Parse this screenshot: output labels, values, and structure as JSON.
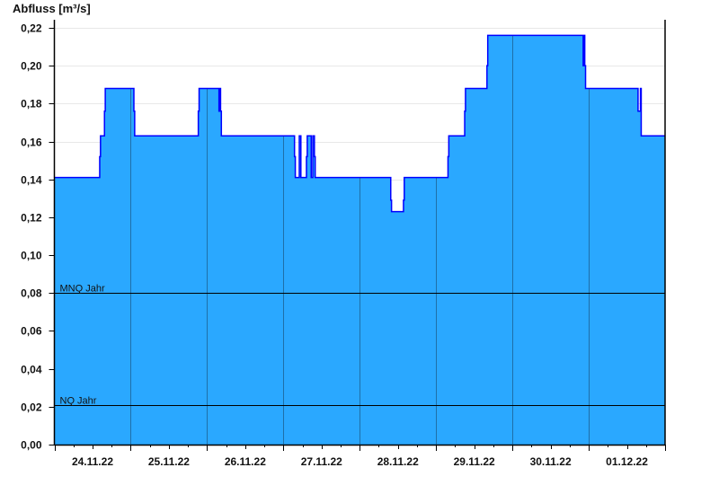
{
  "chart_data": {
    "type": "area",
    "ylabel": "Abfluss [m³/s]",
    "ylim": [
      0,
      0.22
    ],
    "yticks": [
      "0,00",
      "0,02",
      "0,04",
      "0,06",
      "0,08",
      "0,10",
      "0,12",
      "0,14",
      "0,16",
      "0,18",
      "0,20",
      "0,22"
    ],
    "xlim": [
      "2022-11-24T00:00",
      "2022-12-02T00:00"
    ],
    "xticks": [
      "24.11.22",
      "25.11.22",
      "26.11.22",
      "27.11.22",
      "28.11.22",
      "29.11.22",
      "30.11.22",
      "01.12.22"
    ],
    "grid": true,
    "colors": {
      "fill": "#2aa8ff",
      "line": "#0000ff",
      "reference": "#000000",
      "day_divider": "#1f6fa8",
      "grid": "#e8e8e8"
    },
    "reference_lines": [
      {
        "label": "MNQ Jahr",
        "value": 0.08
      },
      {
        "label": "NQ Jahr",
        "value": 0.021
      }
    ],
    "series_step": [
      [
        "2022-11-24T00:00",
        0.141
      ],
      [
        "2022-11-24T14:15",
        0.152
      ],
      [
        "2022-11-24T14:30",
        0.163
      ],
      [
        "2022-11-24T15:45",
        0.176
      ],
      [
        "2022-11-24T16:00",
        0.188
      ],
      [
        "2022-11-25T01:00",
        0.176
      ],
      [
        "2022-11-25T01:15",
        0.163
      ],
      [
        "2022-11-25T21:15",
        0.176
      ],
      [
        "2022-11-25T21:30",
        0.188
      ],
      [
        "2022-11-26T03:45",
        0.176
      ],
      [
        "2022-11-26T04:00",
        0.188
      ],
      [
        "2022-11-26T04:15",
        0.176
      ],
      [
        "2022-11-26T04:30",
        0.163
      ],
      [
        "2022-11-27T03:30",
        0.152
      ],
      [
        "2022-11-27T03:45",
        0.141
      ],
      [
        "2022-11-27T05:00",
        0.163
      ],
      [
        "2022-11-27T05:30",
        0.141
      ],
      [
        "2022-11-27T07:15",
        0.152
      ],
      [
        "2022-11-27T07:30",
        0.163
      ],
      [
        "2022-11-27T08:45",
        0.141
      ],
      [
        "2022-11-27T09:15",
        0.163
      ],
      [
        "2022-11-27T09:45",
        0.152
      ],
      [
        "2022-11-27T10:00",
        0.141
      ],
      [
        "2022-11-28T09:45",
        0.129
      ],
      [
        "2022-11-28T10:00",
        0.123
      ],
      [
        "2022-11-28T13:45",
        0.129
      ],
      [
        "2022-11-28T14:00",
        0.141
      ],
      [
        "2022-11-29T03:45",
        0.152
      ],
      [
        "2022-11-29T04:00",
        0.163
      ],
      [
        "2022-11-29T09:00",
        0.176
      ],
      [
        "2022-11-29T09:15",
        0.188
      ],
      [
        "2022-11-29T16:00",
        0.2
      ],
      [
        "2022-11-29T16:15",
        0.216
      ],
      [
        "2022-11-30T22:15",
        0.2
      ],
      [
        "2022-11-30T22:30",
        0.216
      ],
      [
        "2022-11-30T22:45",
        0.2
      ],
      [
        "2022-11-30T23:00",
        0.188
      ],
      [
        "2022-12-01T15:30",
        0.176
      ],
      [
        "2022-12-01T16:15",
        0.188
      ],
      [
        "2022-12-01T16:30",
        0.163
      ],
      [
        "2022-12-02T00:00",
        0.163
      ]
    ]
  }
}
